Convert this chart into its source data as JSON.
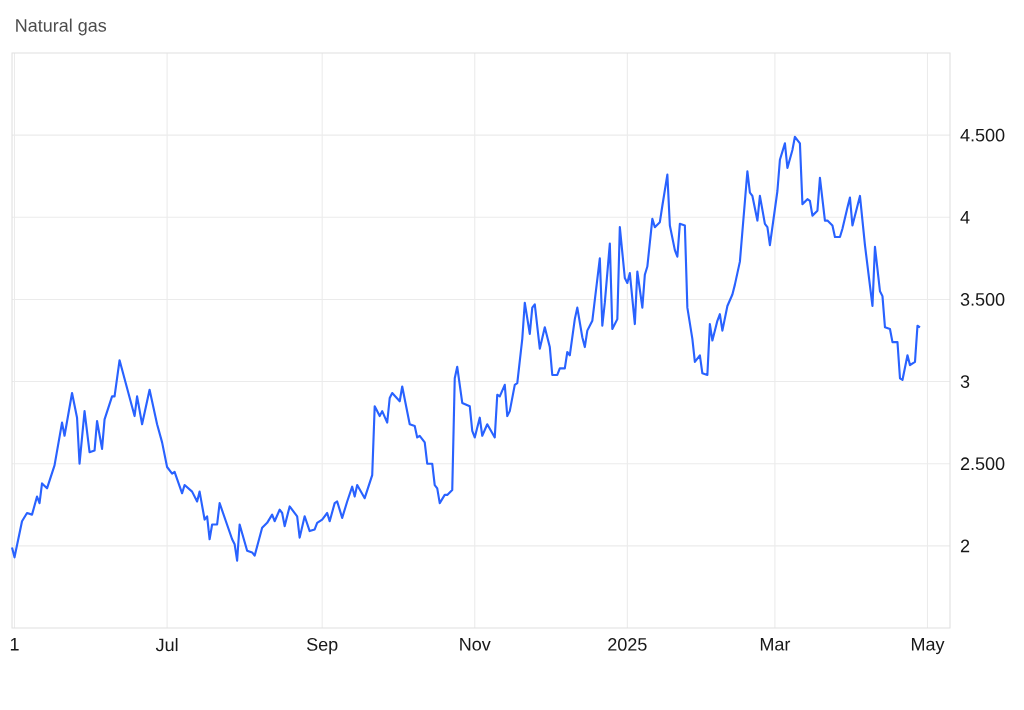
{
  "chart_data": {
    "type": "line",
    "title": "Natural gas",
    "x": [
      "2024-04-30",
      "2024-05-01",
      "2024-05-04",
      "2024-05-06",
      "2024-05-08",
      "2024-05-10",
      "2024-05-11",
      "2024-05-12",
      "2024-05-14",
      "2024-05-17",
      "2024-05-20",
      "2024-05-21",
      "2024-05-24",
      "2024-05-26",
      "2024-05-27",
      "2024-05-29",
      "2024-05-31",
      "2024-06-02",
      "2024-06-03",
      "2024-06-05",
      "2024-06-06",
      "2024-06-09",
      "2024-06-10",
      "2024-06-12",
      "2024-06-18",
      "2024-06-19",
      "2024-06-21",
      "2024-06-24",
      "2024-06-27",
      "2024-06-29",
      "2024-07-01",
      "2024-07-03",
      "2024-07-04",
      "2024-07-07",
      "2024-07-08",
      "2024-07-11",
      "2024-07-13",
      "2024-07-14",
      "2024-07-16",
      "2024-07-17",
      "2024-07-18",
      "2024-07-19",
      "2024-07-21",
      "2024-07-22",
      "2024-07-27",
      "2024-07-28",
      "2024-07-29",
      "2024-07-30",
      "2024-08-02",
      "2024-08-04",
      "2024-08-05",
      "2024-08-08",
      "2024-08-10",
      "2024-08-12",
      "2024-08-13",
      "2024-08-15",
      "2024-08-16",
      "2024-08-17",
      "2024-08-19",
      "2024-08-22",
      "2024-08-23",
      "2024-08-25",
      "2024-08-27",
      "2024-08-29",
      "2024-08-30",
      "2024-09-01",
      "2024-09-03",
      "2024-09-04",
      "2024-09-06",
      "2024-09-07",
      "2024-09-09",
      "2024-09-11",
      "2024-09-13",
      "2024-09-14",
      "2024-09-15",
      "2024-09-18",
      "2024-09-21",
      "2024-09-22",
      "2024-09-24",
      "2024-09-25",
      "2024-09-27",
      "2024-09-28",
      "2024-09-29",
      "2024-10-02",
      "2024-10-03",
      "2024-10-06",
      "2024-10-08",
      "2024-10-09",
      "2024-10-10",
      "2024-10-12",
      "2024-10-13",
      "2024-10-15",
      "2024-10-16",
      "2024-10-17",
      "2024-10-18",
      "2024-10-20",
      "2024-10-21",
      "2024-10-23",
      "2024-10-24",
      "2024-10-25",
      "2024-10-27",
      "2024-10-30",
      "2024-10-31",
      "2024-11-01",
      "2024-11-03",
      "2024-11-04",
      "2024-11-06",
      "2024-11-09",
      "2024-11-10",
      "2024-11-11",
      "2024-11-13",
      "2024-11-14",
      "2024-11-15",
      "2024-11-17",
      "2024-11-18",
      "2024-11-20",
      "2024-11-21",
      "2024-11-23",
      "2024-11-24",
      "2024-11-25",
      "2024-11-27",
      "2024-11-29",
      "2024-12-01",
      "2024-12-02",
      "2024-12-04",
      "2024-12-05",
      "2024-12-07",
      "2024-12-08",
      "2024-12-09",
      "2024-12-11",
      "2024-12-12",
      "2024-12-14",
      "2024-12-15",
      "2024-12-16",
      "2024-12-18",
      "2024-12-21",
      "2024-12-22",
      "2024-12-23",
      "2024-12-25",
      "2024-12-26",
      "2024-12-28",
      "2024-12-29",
      "2024-12-31",
      "2025-01-01",
      "2025-01-02",
      "2025-01-04",
      "2025-01-05",
      "2025-01-07",
      "2025-01-08",
      "2025-01-09",
      "2025-01-11",
      "2025-01-12",
      "2025-01-14",
      "2025-01-15",
      "2025-01-17",
      "2025-01-18",
      "2025-01-20",
      "2025-01-21",
      "2025-01-22",
      "2025-01-24",
      "2025-01-25",
      "2025-01-27",
      "2025-01-28",
      "2025-01-30",
      "2025-01-31",
      "2025-02-02",
      "2025-02-03",
      "2025-02-04",
      "2025-02-06",
      "2025-02-07",
      "2025-02-08",
      "2025-02-10",
      "2025-02-12",
      "2025-02-13",
      "2025-02-15",
      "2025-02-18",
      "2025-02-19",
      "2025-02-20",
      "2025-02-22",
      "2025-02-23",
      "2025-02-25",
      "2025-02-26",
      "2025-02-27",
      "2025-03-02",
      "2025-03-03",
      "2025-03-05",
      "2025-03-06",
      "2025-03-08",
      "2025-03-09",
      "2025-03-11",
      "2025-03-12",
      "2025-03-14",
      "2025-03-15",
      "2025-03-16",
      "2025-03-18",
      "2025-03-19",
      "2025-03-21",
      "2025-03-22",
      "2025-03-24",
      "2025-03-25",
      "2025-03-27",
      "2025-03-28",
      "2025-03-30",
      "2025-03-31",
      "2025-04-01",
      "2025-04-04",
      "2025-04-06",
      "2025-04-09",
      "2025-04-10",
      "2025-04-12",
      "2025-04-13",
      "2025-04-14",
      "2025-04-16",
      "2025-04-17",
      "2025-04-19",
      "2025-04-20",
      "2025-04-21",
      "2025-04-23",
      "2025-04-24",
      "2025-04-26",
      "2025-04-27",
      "2025-04-28"
    ],
    "series": [
      {
        "color": "#2962ff",
        "values": [
          1.99,
          1.93,
          2.15,
          2.2,
          2.19,
          2.3,
          2.26,
          2.38,
          2.35,
          2.49,
          2.75,
          2.67,
          2.93,
          2.78,
          2.5,
          2.82,
          2.57,
          2.58,
          2.76,
          2.59,
          2.77,
          2.91,
          2.91,
          3.13,
          2.79,
          2.91,
          2.74,
          2.95,
          2.74,
          2.63,
          2.48,
          2.44,
          2.45,
          2.32,
          2.37,
          2.33,
          2.27,
          2.33,
          2.16,
          2.18,
          2.04,
          2.13,
          2.13,
          2.26,
          2.04,
          2.01,
          1.91,
          2.13,
          1.97,
          1.96,
          1.94,
          2.11,
          2.14,
          2.19,
          2.15,
          2.22,
          2.2,
          2.12,
          2.24,
          2.18,
          2.05,
          2.18,
          2.09,
          2.1,
          2.14,
          2.16,
          2.2,
          2.15,
          2.26,
          2.27,
          2.17,
          2.27,
          2.36,
          2.3,
          2.37,
          2.29,
          2.43,
          2.85,
          2.79,
          2.82,
          2.75,
          2.9,
          2.93,
          2.88,
          2.97,
          2.74,
          2.73,
          2.66,
          2.67,
          2.63,
          2.5,
          2.5,
          2.37,
          2.35,
          2.26,
          2.31,
          2.31,
          2.34,
          3.02,
          3.09,
          2.87,
          2.85,
          2.7,
          2.66,
          2.78,
          2.67,
          2.74,
          2.66,
          2.92,
          2.91,
          2.98,
          2.79,
          2.82,
          2.98,
          2.99,
          3.26,
          3.48,
          3.29,
          3.45,
          3.47,
          3.2,
          3.33,
          3.21,
          3.04,
          3.04,
          3.08,
          3.08,
          3.18,
          3.16,
          3.38,
          3.45,
          3.27,
          3.21,
          3.31,
          3.37,
          3.75,
          3.34,
          3.48,
          3.84,
          3.32,
          3.38,
          3.94,
          3.63,
          3.6,
          3.66,
          3.35,
          3.67,
          3.45,
          3.65,
          3.7,
          3.99,
          3.94,
          3.97,
          4.07,
          4.26,
          3.95,
          3.8,
          3.76,
          3.96,
          3.95,
          3.45,
          3.26,
          3.12,
          3.16,
          3.05,
          3.04,
          3.35,
          3.25,
          3.37,
          3.41,
          3.31,
          3.46,
          3.53,
          3.59,
          3.73,
          4.28,
          4.15,
          4.13,
          3.98,
          4.13,
          3.96,
          3.94,
          3.83,
          4.16,
          4.35,
          4.45,
          4.3,
          4.41,
          4.49,
          4.45,
          4.08,
          4.11,
          4.1,
          4.01,
          4.04,
          4.24,
          3.98,
          3.98,
          3.95,
          3.88,
          3.88,
          3.93,
          4.06,
          4.12,
          3.95,
          4.13,
          3.83,
          3.46,
          3.82,
          3.55,
          3.52,
          3.33,
          3.32,
          3.24,
          3.24,
          3.02,
          3.01,
          3.16,
          3.1,
          3.12,
          3.34,
          3.33
        ]
      }
    ],
    "xlim": [
      "2024-04-30",
      "2025-05-10"
    ],
    "xticks": [
      {
        "value": "2024-05-01",
        "label": "1"
      },
      {
        "value": "2024-07-01",
        "label": "Jul"
      },
      {
        "value": "2024-09-01",
        "label": "Sep"
      },
      {
        "value": "2024-11-01",
        "label": "Nov"
      },
      {
        "value": "2025-01-01",
        "label": "2025"
      },
      {
        "value": "2025-03-01",
        "label": "Mar"
      },
      {
        "value": "2025-05-01",
        "label": "May"
      }
    ],
    "ylim": [
      1.5,
      5
    ],
    "yticks": [
      2,
      {
        "value": 2.5,
        "label": "2.500"
      },
      3,
      {
        "value": 3.5,
        "label": "3.500"
      },
      4,
      {
        "value": 4.5,
        "label": "4.500"
      }
    ],
    "grid": true,
    "marker": "none",
    "line_style": "solid"
  }
}
